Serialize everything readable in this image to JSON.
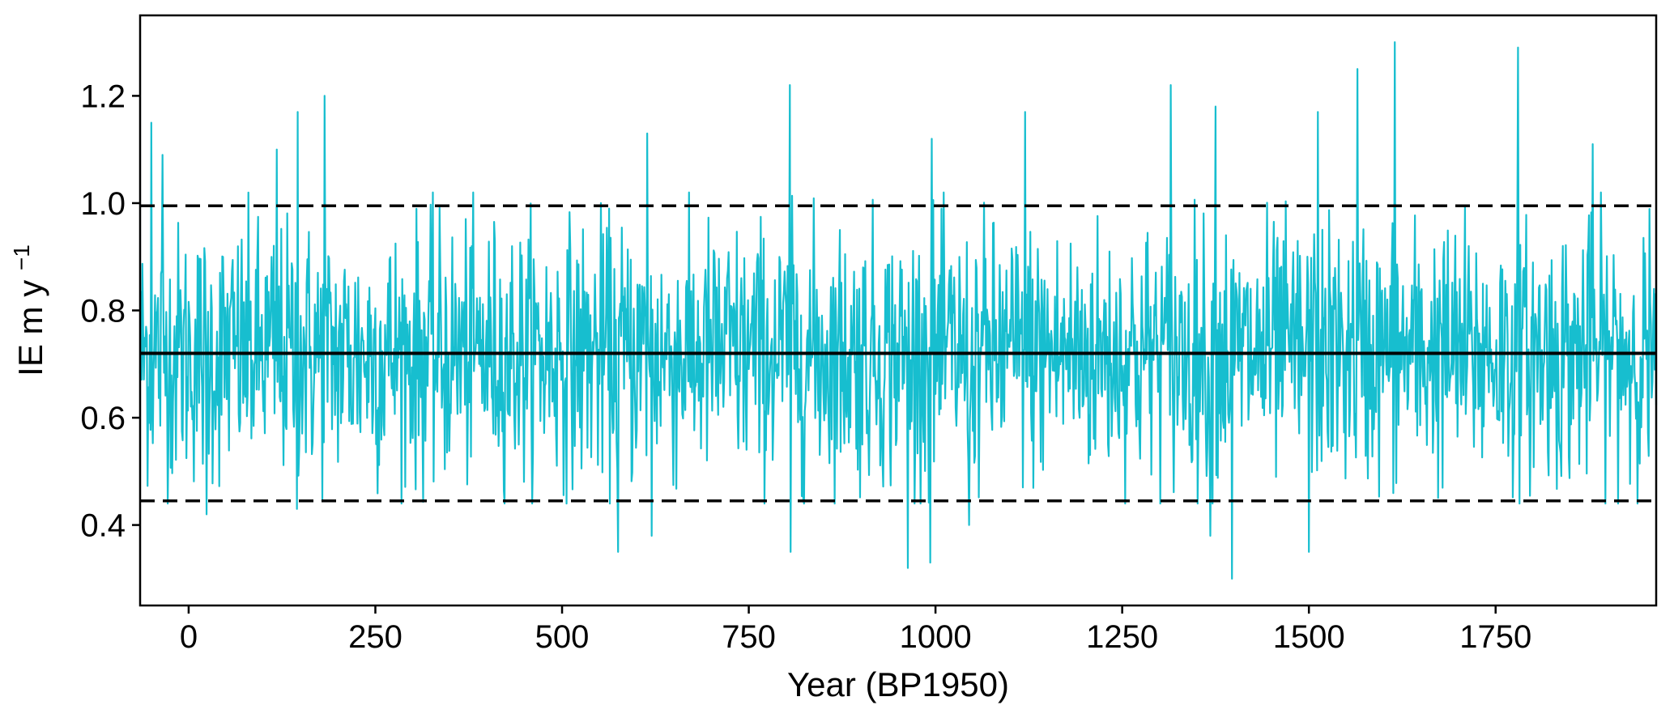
{
  "chart_data": {
    "type": "line",
    "title": "",
    "xlabel": "Year (BP1950)",
    "ylabel": "IE m y",
    "ylabel_superscript": "−1",
    "xlim": [
      -65,
      1965
    ],
    "ylim": [
      0.25,
      1.35
    ],
    "x_ticks": [
      0,
      250,
      500,
      750,
      1000,
      1250,
      1500,
      1750
    ],
    "x_tick_labels": [
      "0",
      "250",
      "500",
      "750",
      "1000",
      "1250",
      "1500",
      "1750"
    ],
    "y_ticks": [
      0.4,
      0.6,
      0.8,
      1.0,
      1.2
    ],
    "y_tick_labels": [
      "0.4",
      "0.6",
      "0.8",
      "1.0",
      "1.2"
    ],
    "grid": false,
    "legend": "none",
    "series_color": "#17becf",
    "line_color": "#000000",
    "reference_lines": [
      {
        "y": 0.72,
        "style": "solid"
      },
      {
        "y": 0.995,
        "style": "dashed"
      },
      {
        "y": 0.445,
        "style": "dashed"
      }
    ],
    "series": [
      {
        "x_start": -65,
        "x_end": 1965,
        "x_step": 1,
        "mean": 0.72,
        "std": 0.12,
        "approximate": true,
        "peaks": [
          {
            "x": -50,
            "y": 1.15
          },
          {
            "x": -35,
            "y": 1.09
          },
          {
            "x": 118,
            "y": 1.1
          },
          {
            "x": 146,
            "y": 1.17
          },
          {
            "x": 182,
            "y": 1.2
          },
          {
            "x": 614,
            "y": 1.13
          },
          {
            "x": 805,
            "y": 1.22
          },
          {
            "x": 995,
            "y": 1.12
          },
          {
            "x": 1120,
            "y": 1.17
          },
          {
            "x": 1315,
            "y": 1.22
          },
          {
            "x": 1375,
            "y": 1.18
          },
          {
            "x": 1512,
            "y": 1.17
          },
          {
            "x": 1565,
            "y": 1.25
          },
          {
            "x": 1615,
            "y": 1.3
          },
          {
            "x": 1780,
            "y": 1.29
          },
          {
            "x": 1880,
            "y": 1.11
          }
        ],
        "troughs": [
          {
            "x": 24,
            "y": 0.42
          },
          {
            "x": 145,
            "y": 0.43
          },
          {
            "x": 575,
            "y": 0.35
          },
          {
            "x": 620,
            "y": 0.38
          },
          {
            "x": 806,
            "y": 0.35
          },
          {
            "x": 963,
            "y": 0.32
          },
          {
            "x": 993,
            "y": 0.33
          },
          {
            "x": 1045,
            "y": 0.4
          },
          {
            "x": 1368,
            "y": 0.38
          },
          {
            "x": 1397,
            "y": 0.3
          },
          {
            "x": 1500,
            "y": 0.35
          }
        ]
      }
    ]
  }
}
